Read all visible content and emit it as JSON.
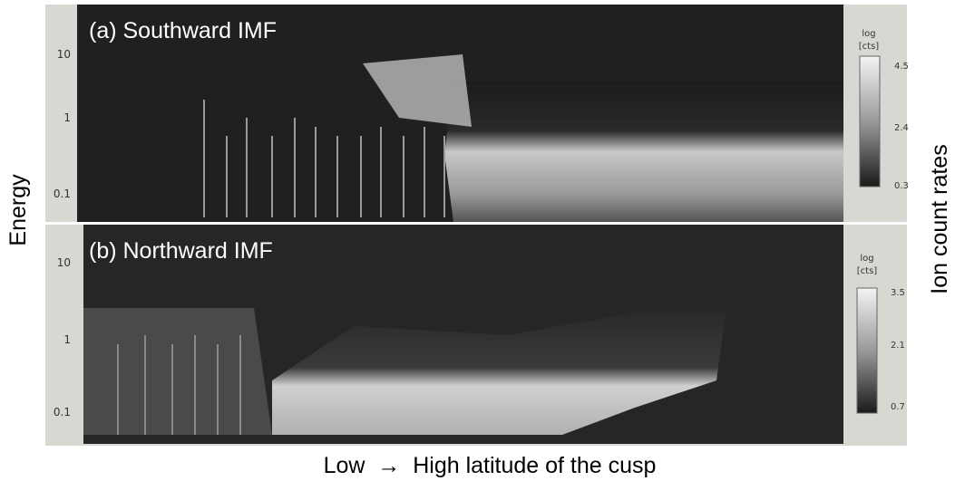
{
  "y_label": "Energy",
  "x_label": "Low  →  High latitude of the cusp",
  "colorbar_label": "Ion count rates",
  "panels": [
    {
      "title": "(a) Southward IMF",
      "energy_ticks": [
        10,
        1,
        0.1
      ],
      "colorbar_unit": [
        "log",
        "[cts]"
      ],
      "colorbar_ticks": [
        4.5,
        2.4,
        0.3
      ]
    },
    {
      "title": "(b) Northward IMF",
      "energy_ticks": [
        10,
        1,
        0.1
      ],
      "colorbar_unit": [
        "log",
        "[cts]"
      ],
      "colorbar_ticks": [
        3.5,
        2.1,
        0.7
      ]
    }
  ]
}
